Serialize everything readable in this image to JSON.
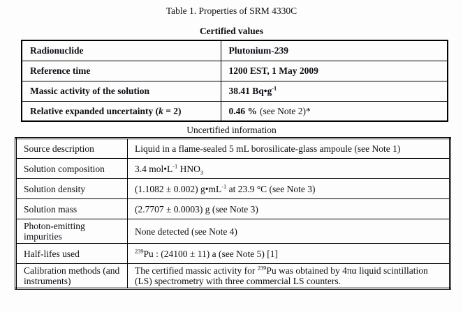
{
  "document": {
    "title": "Table 1. Properties of SRM 4330C"
  },
  "colors": {
    "background": "#ffffff",
    "text": "#000000",
    "border": "#000000"
  },
  "certified_table": {
    "heading": "Certified values",
    "rows": [
      {
        "label": [
          {
            "t": "Radionuclide"
          }
        ],
        "value": [
          {
            "t": "Plutonium-239"
          }
        ]
      },
      {
        "label": [
          {
            "t": "Reference time"
          }
        ],
        "value": [
          {
            "t": "1200 EST, 1 May 2009"
          }
        ]
      },
      {
        "label": [
          {
            "t": "Massic activity of the solution"
          }
        ],
        "value": [
          {
            "t": "38.41 Bq•g"
          },
          {
            "t": "-1",
            "s": "sup"
          }
        ]
      },
      {
        "label": [
          {
            "t": "Relative expanded uncertainty ("
          },
          {
            "t": "k",
            "s": "i"
          },
          {
            "t": " = 2)"
          }
        ],
        "value": [
          {
            "t": "0.46 %"
          },
          {
            "t": "(see Note 2)*",
            "s": "n"
          }
        ]
      }
    ]
  },
  "uncertified_table": {
    "heading": "Uncertified information",
    "rows": [
      {
        "label": [
          {
            "t": "Source description"
          }
        ],
        "value": [
          {
            "t": "Liquid in a flame-sealed 5 mL borosilicate-glass ampoule (see Note 1)"
          }
        ]
      },
      {
        "label": [
          {
            "t": "Solution composition"
          }
        ],
        "value": [
          {
            "t": "3.4 mol•L"
          },
          {
            "t": "-1",
            "s": "sup"
          },
          {
            "t": " HNO"
          },
          {
            "t": "3",
            "s": "sub"
          }
        ]
      },
      {
        "label": [
          {
            "t": "Solution density"
          }
        ],
        "value": [
          {
            "t": "(1.1082 ± 0.002) g•mL"
          },
          {
            "t": "-1",
            "s": "sup"
          },
          {
            "t": " at 23.9 °C (see Note 3)"
          }
        ]
      },
      {
        "label": [
          {
            "t": "Solution mass"
          }
        ],
        "value": [
          {
            "t": "(2.7707 ± 0.0003) g (see Note 3)"
          }
        ]
      },
      {
        "label": [
          {
            "t": "Photon-emitting impurities"
          }
        ],
        "value": [
          {
            "t": "None detected (see Note 4)"
          }
        ]
      },
      {
        "label": [
          {
            "t": "Half-lifes used"
          }
        ],
        "value": [
          {
            "t": "239",
            "s": "sup"
          },
          {
            "t": "Pu : (24100 ± 11) a (see Note 5) [1]"
          }
        ]
      },
      {
        "label": [
          {
            "t": "Calibration methods (and instruments)"
          }
        ],
        "value": [
          {
            "t": "The certified massic activity for "
          },
          {
            "t": "239",
            "s": "sup"
          },
          {
            "t": "Pu was obtained by 4πα liquid scintillation (LS) spectrometry with three commercial LS counters."
          }
        ]
      }
    ]
  }
}
